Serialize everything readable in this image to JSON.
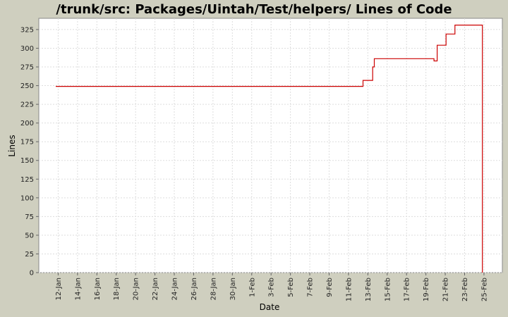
{
  "chart_data": {
    "type": "line",
    "title": "/trunk/src: Packages/Uintah/Test/helpers/ Lines of Code",
    "xlabel": "Date",
    "ylabel": "Lines",
    "ylim": [
      0,
      340
    ],
    "yticks": [
      0,
      25,
      50,
      75,
      100,
      125,
      150,
      175,
      200,
      225,
      250,
      275,
      300,
      325
    ],
    "xticks": [
      "12-Jan",
      "14-Jan",
      "16-Jan",
      "18-Jan",
      "20-Jan",
      "22-Jan",
      "24-Jan",
      "26-Jan",
      "28-Jan",
      "30-Jan",
      "1-Feb",
      "3-Feb",
      "5-Feb",
      "7-Feb",
      "9-Feb",
      "11-Feb",
      "13-Feb",
      "15-Feb",
      "17-Feb",
      "19-Feb",
      "21-Feb",
      "23-Feb",
      "25-Feb"
    ],
    "grid": true,
    "line_color": "#cc0000",
    "series": [
      {
        "x": [
          "2007-01-11T18:00",
          "2007-02-12T12:00",
          "2007-02-12T12:00",
          "2007-02-13T12:00",
          "2007-02-13T12:00",
          "2007-02-13T16:00",
          "2007-02-13T16:00",
          "2007-02-19T20:00",
          "2007-02-19T20:00",
          "2007-02-20T04:00",
          "2007-02-20T04:00",
          "2007-02-21T02:00",
          "2007-02-21T02:00",
          "2007-02-22T00:00",
          "2007-02-22T00:00",
          "2007-02-24T20:00",
          "2007-02-24T20:00"
        ],
        "y": [
          249,
          249,
          257,
          257,
          275,
          275,
          286,
          286,
          283,
          283,
          304,
          304,
          319,
          319,
          331,
          331,
          0
        ]
      }
    ]
  }
}
